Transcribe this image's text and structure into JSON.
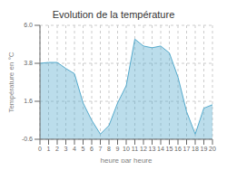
{
  "chart_data": {
    "type": "area",
    "title": "Evolution de la température",
    "xlabel": "heure par heure",
    "ylabel": "Température en °C",
    "x": [
      0,
      1,
      2,
      3,
      4,
      5,
      6,
      7,
      8,
      9,
      10,
      11,
      12,
      13,
      14,
      15,
      16,
      17,
      18,
      19,
      20
    ],
    "values": [
      3.8,
      3.85,
      3.85,
      3.5,
      3.2,
      1.5,
      0.5,
      -0.3,
      0.2,
      1.5,
      2.5,
      5.2,
      4.8,
      4.7,
      4.8,
      4.4,
      3.0,
      1.0,
      -0.3,
      1.2,
      1.4
    ],
    "xlim": [
      0,
      20
    ],
    "xticks": [
      0,
      1,
      2,
      3,
      4,
      5,
      6,
      7,
      8,
      9,
      10,
      11,
      12,
      13,
      14,
      15,
      16,
      17,
      18,
      19,
      20
    ],
    "ylim": [
      -0.6,
      6.0
    ],
    "yticks": [
      -0.6,
      1.6,
      3.8,
      {
        "value": 6.0,
        "label": "6.0"
      }
    ],
    "color": "#55aacc",
    "grid": true
  }
}
